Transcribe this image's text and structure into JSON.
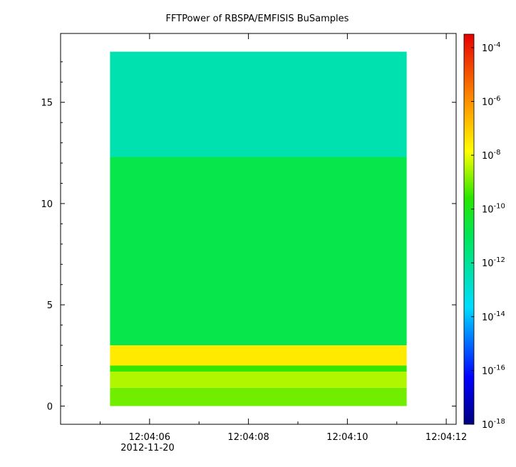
{
  "chart_data": {
    "type": "heatmap",
    "title": "FFTPower of RBSPA/EMFISIS  BuSamples",
    "xlabel": "",
    "ylabel": "",
    "x_ticks": [
      "12:04:06",
      "12:04:08",
      "12:04:10",
      "12:04:12"
    ],
    "x_date_label": "2012-11-20",
    "x_range_seconds": [
      4.2,
      12.2
    ],
    "data_x_range_seconds": [
      5.2,
      11.2
    ],
    "y_ticks": [
      0,
      5,
      10,
      15
    ],
    "y_range": [
      -0.9,
      18.4
    ],
    "data_y_range": [
      0,
      17.5
    ],
    "colorbar": {
      "scale": "log",
      "range_exponent": [
        -18,
        -3.5
      ],
      "tick_base": "10",
      "tick_exponents": [
        "-4",
        "-6",
        "-8",
        "-10",
        "-12",
        "-14",
        "-16",
        "-18"
      ],
      "tick_values": [
        -4,
        -6,
        -8,
        -10,
        -12,
        -14,
        -16,
        -18
      ],
      "colormap": "rainbow (blue → cyan → green → yellow → orange → red)"
    },
    "bands": [
      {
        "y_range": [
          12.3,
          17.5
        ],
        "log_power": -12.4
      },
      {
        "y_range": [
          3.0,
          12.3
        ],
        "log_power": -10.8
      },
      {
        "y_range": [
          2.0,
          3.0
        ],
        "log_power": -7.5
      },
      {
        "y_range": [
          1.7,
          2.0
        ],
        "log_power": -9.5
      },
      {
        "y_range": [
          0.9,
          1.7
        ],
        "log_power": -8.5
      },
      {
        "y_range": [
          0.0,
          0.9
        ],
        "log_power": -9.0
      }
    ]
  }
}
